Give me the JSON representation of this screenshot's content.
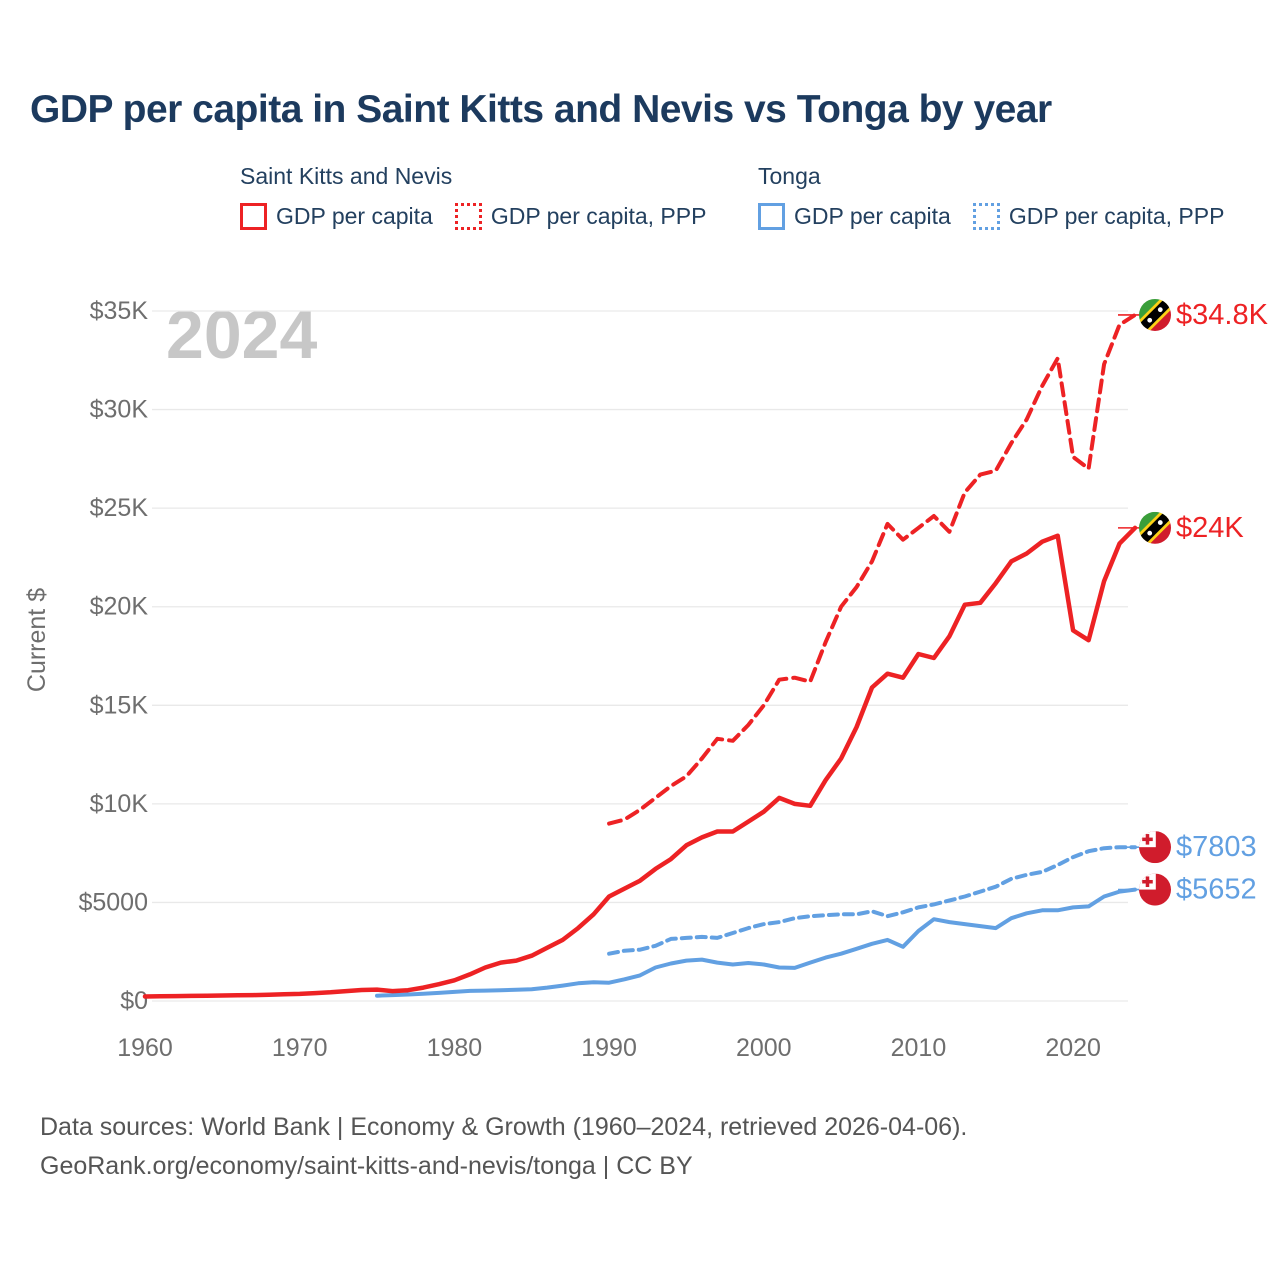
{
  "title": "GDP per capita in Saint Kitts and Nevis vs Tonga by year",
  "watermark": "2024",
  "colors": {
    "skn_red": "#ed2224",
    "tonga_blue": "#62a0e2",
    "title_navy": "#1c3a5e",
    "axis_gray": "#6e6e6e",
    "watermark_gray": "#c7c7c7",
    "grid_gray": "#e9e9e9",
    "footer_gray": "#555555"
  },
  "legend": {
    "groups": [
      {
        "name": "Saint Kitts and Nevis",
        "items": [
          {
            "label": "GDP per capita",
            "color": "#ed2224",
            "style": "solid"
          },
          {
            "label": "GDP per capita, PPP",
            "color": "#ed2224",
            "style": "dotted"
          }
        ]
      },
      {
        "name": "Tonga",
        "items": [
          {
            "label": "GDP per capita",
            "color": "#62a0e2",
            "style": "solid"
          },
          {
            "label": "GDP per capita, PPP",
            "color": "#62a0e2",
            "style": "dotted"
          }
        ]
      }
    ]
  },
  "footer": {
    "line1": "Data sources: World Bank | Economy & Growth (1960–2024, retrieved 2026-04-06).",
    "line2": "GeoRank.org/economy/saint-kitts-and-nevis/tonga | CC BY"
  },
  "chart_data": {
    "type": "line",
    "title": "GDP per capita in Saint Kitts and Nevis vs Tonga by year",
    "xlabel": "",
    "ylabel": "Current $",
    "unit": "USD thousands",
    "xlim": [
      1960,
      2024
    ],
    "ylim": [
      0,
      35.5
    ],
    "grid": "horizontal",
    "legend_position": "top",
    "x_ticks": [
      1960,
      1970,
      1980,
      1990,
      2000,
      2010,
      2020
    ],
    "y_ticks": [
      {
        "label": "$0",
        "v": 0
      },
      {
        "label": "$5000",
        "v": 5
      },
      {
        "label": "$10K",
        "v": 10
      },
      {
        "label": "$15K",
        "v": 15
      },
      {
        "label": "$20K",
        "v": 20
      },
      {
        "label": "$25K",
        "v": 25
      },
      {
        "label": "$30K",
        "v": 30
      },
      {
        "label": "$35K",
        "v": 35
      }
    ],
    "series": [
      {
        "id": "tonga-ppp",
        "country": "Tonga",
        "name": "GDP per capita, PPP",
        "color": "#62a0e2",
        "dash": "9 6",
        "width": 4,
        "flag": "tonga",
        "end_label": "$7803",
        "start_year": 1990,
        "values": [
          2.4,
          2.55,
          2.6,
          2.8,
          3.15,
          3.2,
          3.25,
          3.2,
          3.45,
          3.7,
          3.9,
          4.0,
          4.2,
          4.3,
          4.35,
          4.4,
          4.4,
          4.55,
          4.3,
          4.5,
          4.75,
          4.9,
          5.1,
          5.3,
          5.55,
          5.8,
          6.2,
          6.4,
          6.55,
          6.9,
          7.3,
          7.6,
          7.75,
          7.8,
          7.803
        ]
      },
      {
        "id": "tonga-gdp",
        "country": "Tonga",
        "name": "GDP per capita",
        "color": "#62a0e2",
        "dash": null,
        "width": 4,
        "flag": "tonga",
        "end_label": "$5652",
        "start_year": 1975,
        "values": [
          0.27,
          0.3,
          0.33,
          0.37,
          0.41,
          0.46,
          0.51,
          0.53,
          0.55,
          0.57,
          0.6,
          0.68,
          0.78,
          0.9,
          0.95,
          0.93,
          1.1,
          1.3,
          1.7,
          1.9,
          2.05,
          2.1,
          1.95,
          1.85,
          1.93,
          1.85,
          1.7,
          1.68,
          1.95,
          2.2,
          2.4,
          2.65,
          2.9,
          3.1,
          2.75,
          3.55,
          4.15,
          4.0,
          3.9,
          3.8,
          3.7,
          4.2,
          4.45,
          4.6,
          4.6,
          4.75,
          4.8,
          5.3,
          5.55,
          5.652
        ]
      },
      {
        "id": "skn-ppp",
        "country": "Saint Kitts and Nevis",
        "name": "GDP per capita, PPP",
        "color": "#ed2224",
        "dash": "12 7",
        "width": 4,
        "flag": "skn",
        "end_label": "$34.8K",
        "start_year": 1990,
        "values": [
          9.0,
          9.2,
          9.7,
          10.3,
          10.9,
          11.4,
          12.3,
          13.3,
          13.2,
          14.0,
          15.0,
          16.3,
          16.4,
          16.2,
          18.2,
          20.0,
          21.0,
          22.3,
          24.2,
          23.4,
          24.0,
          24.6,
          23.8,
          25.8,
          26.7,
          26.9,
          28.3,
          29.5,
          31.2,
          32.6,
          27.6,
          27.0,
          32.3,
          34.3,
          34.8
        ]
      },
      {
        "id": "skn-gdp",
        "country": "Saint Kitts and Nevis",
        "name": "GDP per capita",
        "color": "#ed2224",
        "dash": null,
        "width": 4.5,
        "flag": "skn",
        "end_label": "$24K",
        "start_year": 1960,
        "values": [
          0.23,
          0.24,
          0.25,
          0.26,
          0.27,
          0.28,
          0.29,
          0.3,
          0.32,
          0.34,
          0.36,
          0.4,
          0.44,
          0.5,
          0.56,
          0.58,
          0.5,
          0.55,
          0.68,
          0.85,
          1.05,
          1.35,
          1.7,
          1.95,
          2.05,
          2.3,
          2.7,
          3.1,
          3.7,
          4.4,
          5.3,
          5.7,
          6.1,
          6.7,
          7.2,
          7.9,
          8.3,
          8.6,
          8.6,
          9.1,
          9.6,
          10.3,
          10.0,
          9.9,
          11.2,
          12.3,
          13.9,
          15.9,
          16.6,
          16.4,
          17.6,
          17.4,
          18.5,
          20.1,
          20.2,
          21.2,
          22.3,
          22.7,
          23.3,
          23.6,
          18.8,
          18.3,
          21.3,
          23.2,
          24.0
        ]
      }
    ]
  }
}
